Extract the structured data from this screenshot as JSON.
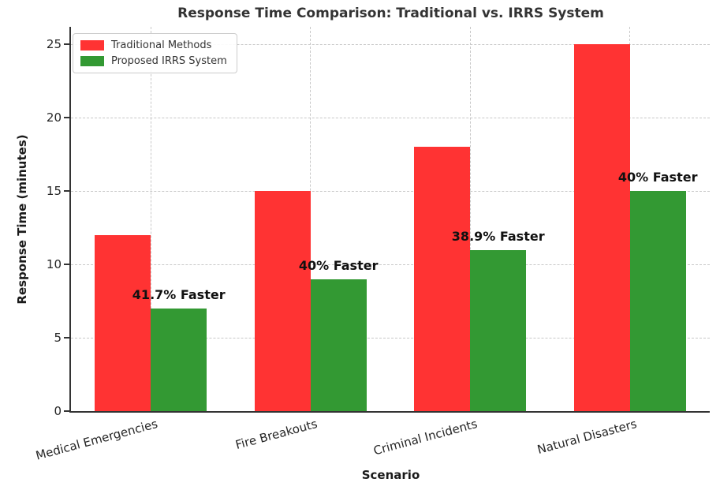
{
  "chart_data": {
    "type": "bar",
    "title": "Response Time Comparison: Traditional vs. IRRS System",
    "xlabel": "Scenario",
    "ylabel": "Response Time (minutes)",
    "categories": [
      "Medical Emergencies",
      "Fire Breakouts",
      "Criminal Incidents",
      "Natural Disasters"
    ],
    "series": [
      {
        "name": "Traditional Methods",
        "color": "#ff3333",
        "values": [
          12,
          15,
          18,
          25
        ]
      },
      {
        "name": "Proposed IRRS System",
        "color": "#339933",
        "values": [
          7,
          9,
          11,
          15
        ]
      }
    ],
    "annotations": [
      "41.7% Faster",
      "40% Faster",
      "38.9% Faster",
      "40% Faster"
    ],
    "yticks": [
      0,
      5,
      10,
      15,
      20,
      25
    ],
    "ylim": [
      0,
      26.2
    ],
    "bar_width_fraction": 0.35,
    "grid": "dashed-both-axes",
    "legend_position": "upper-left"
  },
  "colors": {
    "traditional": "#ff3333",
    "irrs": "#339933",
    "grid": "#c8c8c8",
    "spine": "#333333",
    "title_text": "#333333",
    "tick_text": "#262626"
  }
}
